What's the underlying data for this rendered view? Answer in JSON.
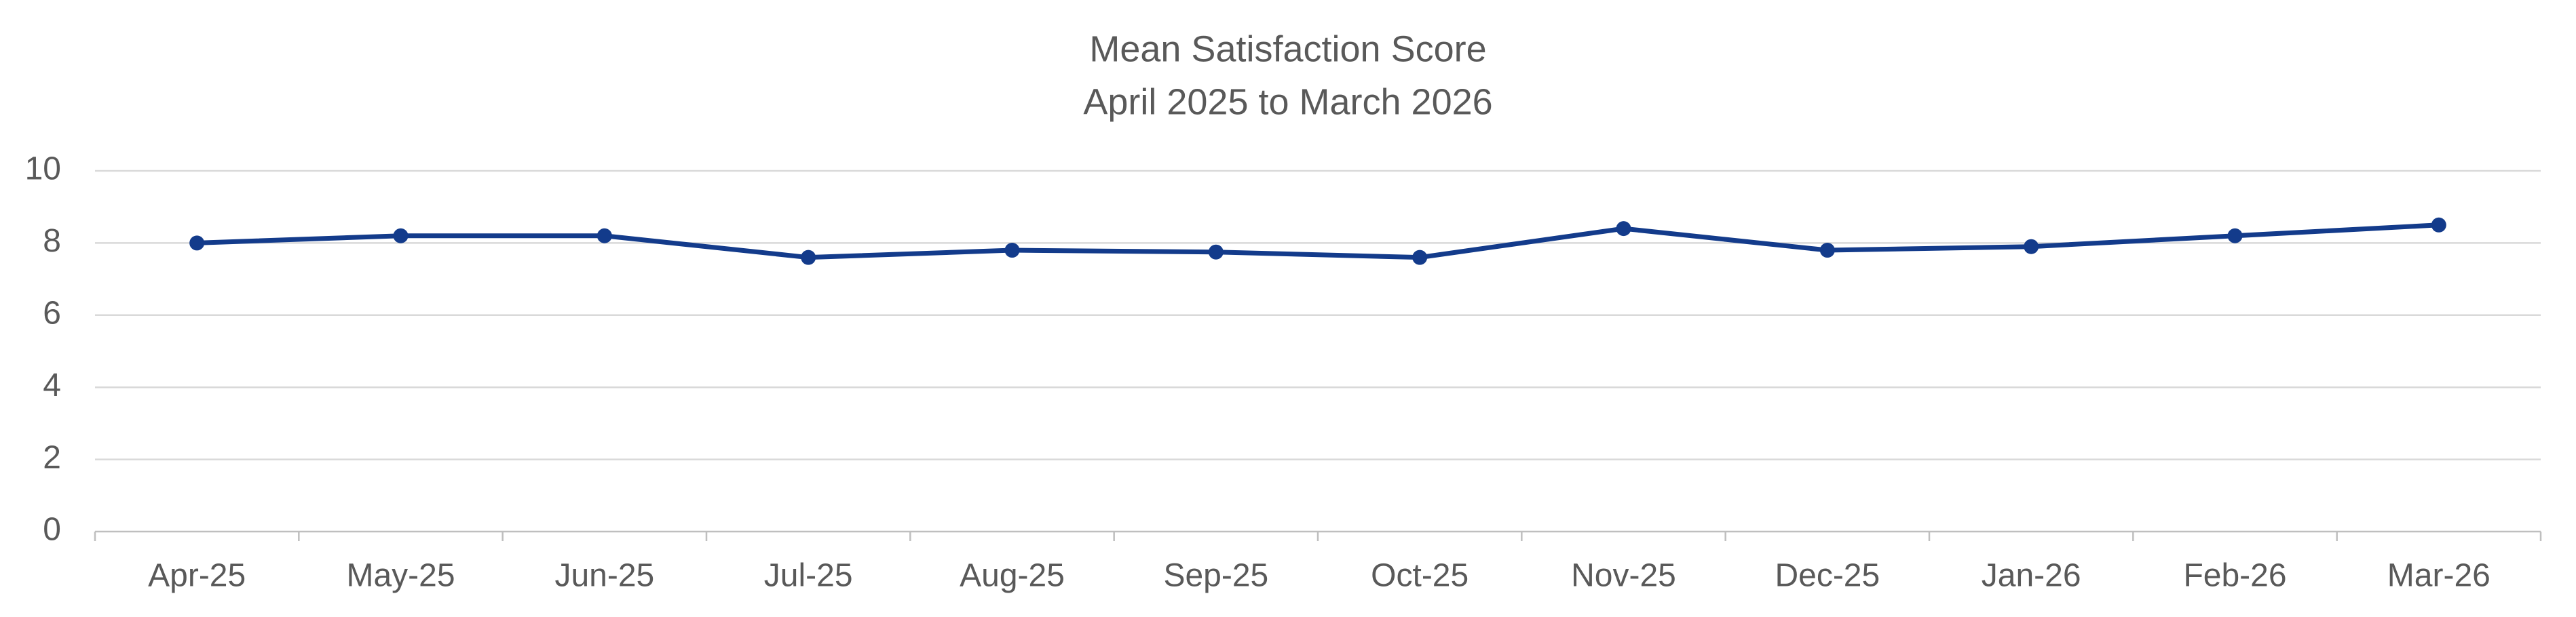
{
  "chart_data": {
    "type": "line",
    "title": "Mean Satisfaction Score",
    "subtitle": "April 2025 to March 2026",
    "categories": [
      "Apr-25",
      "May-25",
      "Jun-25",
      "Jul-25",
      "Aug-25",
      "Sep-25",
      "Oct-25",
      "Nov-25",
      "Dec-25",
      "Jan-26",
      "Feb-26",
      "Mar-26"
    ],
    "series": [
      {
        "name": "Mean Satisfaction Score",
        "color": "#133b8b",
        "values": [
          8.0,
          8.2,
          8.2,
          7.6,
          7.8,
          7.75,
          7.6,
          8.4,
          7.8,
          7.9,
          8.2,
          8.5
        ]
      }
    ],
    "ylim": [
      0,
      10
    ],
    "yticks": [
      0,
      2,
      4,
      6,
      8,
      10
    ],
    "grid": true
  }
}
